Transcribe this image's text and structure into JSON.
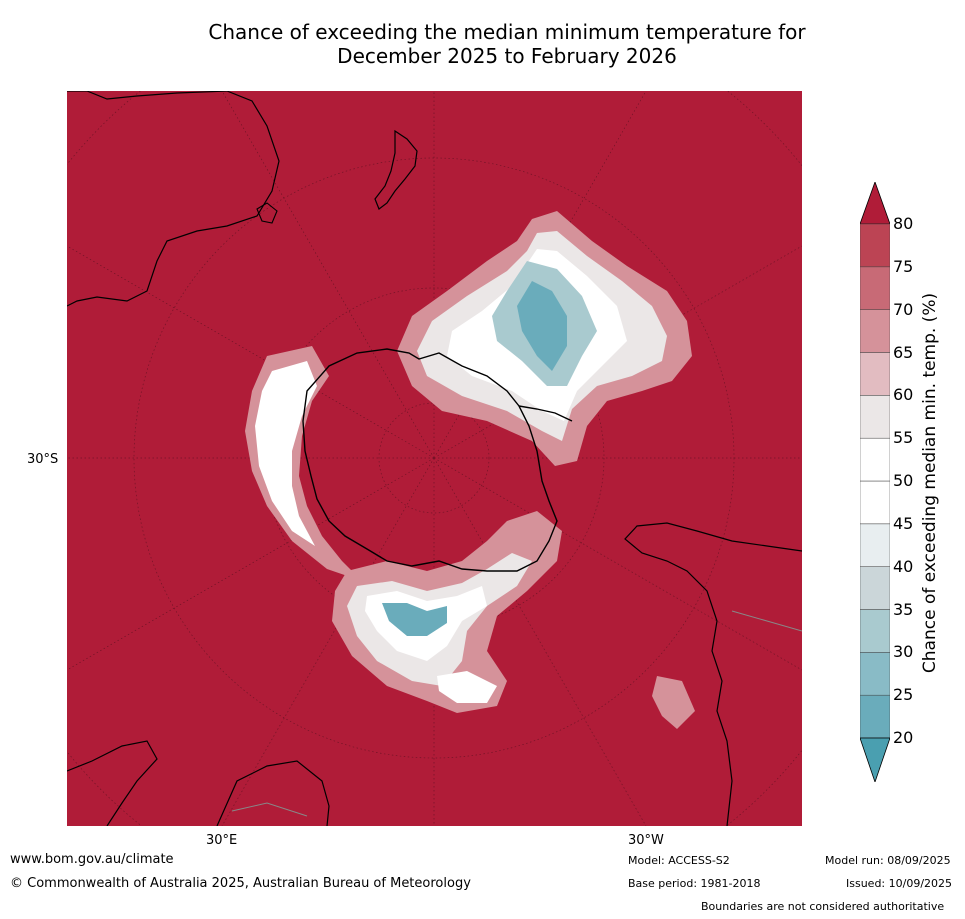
{
  "title": {
    "line1": "Chance of exceeding the median minimum temperature for",
    "line2": "December 2025 to February 2026"
  },
  "map": {
    "projection": "south-polar-stereographic",
    "lat_label": "30°S",
    "lon_labels": {
      "east": "30°E",
      "west": "30°W"
    }
  },
  "colorbar": {
    "label": "Chance of exceeding median min. temp. (%)",
    "ticks": [
      "20",
      "25",
      "30",
      "35",
      "40",
      "45",
      "50",
      "55",
      "60",
      "65",
      "70",
      "75",
      "80"
    ],
    "colors": [
      "#4a9fb0",
      "#6aacbb",
      "#89bbc6",
      "#a9cacf",
      "#cbd6d9",
      "#e8eef0",
      "#ffffff",
      "#ffffff",
      "#ebe7e7",
      "#e2bcc1",
      "#d5929a",
      "#c86a76",
      "#bc4454",
      "#b01c38"
    ]
  },
  "footer": {
    "url": "www.bom.gov.au/climate",
    "copyright": "© Commonwealth of Australia 2025, Australian Bureau of Meteorology",
    "model": "Model: ACCESS-S2",
    "base_period": "Base period: 1981-2018",
    "model_run": "Model run: 08/09/2025",
    "issued": "Issued: 10/09/2025",
    "disclaimer": "Boundaries are not considered authoritative"
  }
}
